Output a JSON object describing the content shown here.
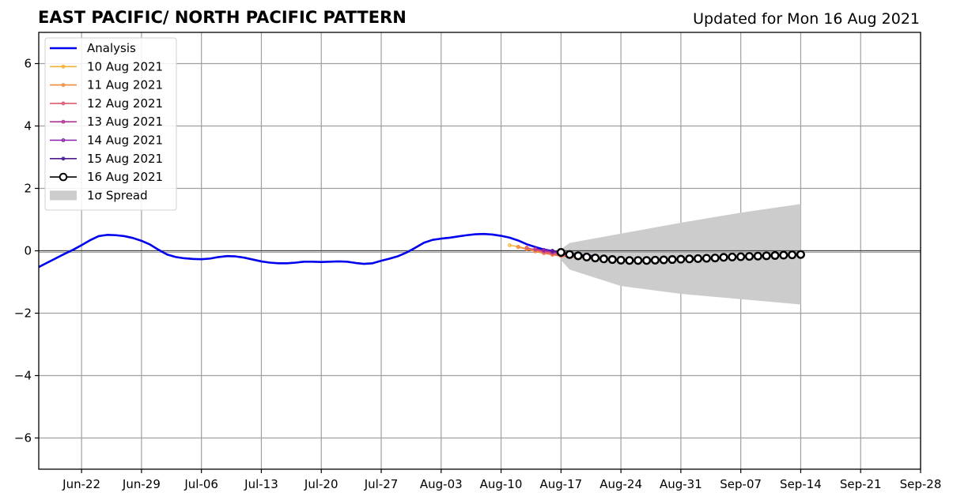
{
  "chart_data": {
    "type": "line",
    "title": "EAST PACIFIC/ NORTH PACIFIC PATTERN",
    "subtitle": "Updated for Mon 16 Aug 2021",
    "xlabel": "",
    "ylabel": "",
    "xlim": [
      "2021-06-17",
      "2021-09-28"
    ],
    "ylim": [
      -7,
      7
    ],
    "x_ticks": [
      "Jun-22",
      "Jun-29",
      "Jul-06",
      "Jul-13",
      "Jul-20",
      "Jul-27",
      "Aug-03",
      "Aug-10",
      "Aug-17",
      "Aug-24",
      "Aug-31",
      "Sep-07",
      "Sep-14",
      "Sep-21",
      "Sep-28"
    ],
    "y_ticks": [
      "6",
      "4",
      "2",
      "0",
      "−2",
      "−4",
      "−6"
    ],
    "y_tick_values": [
      6,
      4,
      2,
      0,
      -2,
      -4,
      -6
    ],
    "grid": true,
    "zero_line": true,
    "legend_position": "top-left",
    "analysis": {
      "name": "Analysis",
      "color": "#0000ee",
      "start_date": "2021-06-17",
      "values": [
        -0.52,
        -0.38,
        -0.24,
        -0.1,
        0.03,
        0.18,
        0.34,
        0.47,
        0.51,
        0.5,
        0.47,
        0.41,
        0.32,
        0.2,
        0.03,
        -0.12,
        -0.2,
        -0.24,
        -0.26,
        -0.27,
        -0.25,
        -0.2,
        -0.17,
        -0.18,
        -0.22,
        -0.28,
        -0.34,
        -0.38,
        -0.4,
        -0.4,
        -0.38,
        -0.35,
        -0.35,
        -0.36,
        -0.35,
        -0.34,
        -0.35,
        -0.39,
        -0.42,
        -0.4,
        -0.32,
        -0.25,
        -0.17,
        -0.05,
        0.1,
        0.26,
        0.35,
        0.39,
        0.42,
        0.46,
        0.5,
        0.53,
        0.54,
        0.52,
        0.48,
        0.42,
        0.33,
        0.21,
        0.12,
        0.04,
        -0.01
      ]
    },
    "forecasts": [
      {
        "name": "10 Aug 2021",
        "color": "#f5b133",
        "start_date": "2021-08-11",
        "values": [
          0.18,
          0.13,
          0.07,
          0.01,
          -0.04,
          -0.09,
          -0.13,
          -0.17,
          -0.19,
          -0.21,
          -0.22
        ]
      },
      {
        "name": "11 Aug 2021",
        "color": "#f08a3e",
        "start_date": "2021-08-12",
        "values": [
          0.12,
          0.05,
          -0.02,
          -0.08,
          -0.13,
          -0.17,
          -0.19,
          -0.21,
          -0.22,
          -0.22
        ]
      },
      {
        "name": "12 Aug 2021",
        "color": "#dd5a72",
        "start_date": "2021-08-13",
        "values": [
          0.1,
          0.03,
          -0.04,
          -0.1,
          -0.15,
          -0.19,
          -0.21,
          -0.22,
          -0.22
        ]
      },
      {
        "name": "13 Aug 2021",
        "color": "#b2358f",
        "start_date": "2021-08-14",
        "values": [
          0.06,
          0.0,
          -0.05,
          -0.1,
          -0.14,
          -0.17,
          -0.19,
          -0.2
        ]
      },
      {
        "name": "14 Aug 2021",
        "color": "#8a1fa8",
        "start_date": "2021-08-15",
        "values": [
          0.03,
          -0.02,
          -0.06,
          -0.1,
          -0.13,
          -0.15,
          -0.17
        ]
      },
      {
        "name": "15 Aug 2021",
        "color": "#4a1a8f",
        "start_date": "2021-08-16",
        "values": [
          0.0,
          -0.04,
          -0.08,
          -0.11,
          -0.14,
          -0.16
        ]
      }
    ],
    "latest_forecast": {
      "name": "16 Aug 2021",
      "color": "#000000",
      "start_date": "2021-08-17",
      "values": [
        -0.05,
        -0.12,
        -0.16,
        -0.2,
        -0.23,
        -0.26,
        -0.28,
        -0.3,
        -0.31,
        -0.31,
        -0.31,
        -0.3,
        -0.29,
        -0.28,
        -0.27,
        -0.26,
        -0.25,
        -0.24,
        -0.23,
        -0.21,
        -0.2,
        -0.19,
        -0.18,
        -0.17,
        -0.16,
        -0.15,
        -0.14,
        -0.13,
        -0.12
      ]
    },
    "spread": {
      "name": "1σ Spread",
      "color": "#cccccc",
      "x_dates": [
        "2021-08-17",
        "2021-08-18",
        "2021-08-24",
        "2021-08-31",
        "2021-09-07",
        "2021-09-14"
      ],
      "upper": [
        0.05,
        0.25,
        0.55,
        0.9,
        1.22,
        1.5
      ],
      "lower": [
        -0.3,
        -0.6,
        -1.13,
        -1.38,
        -1.55,
        -1.72
      ]
    },
    "legend": [
      {
        "label": "Analysis",
        "type": "line",
        "color": "#0000ee"
      },
      {
        "label": "10 Aug 2021",
        "type": "line-dot",
        "color": "#f5b133"
      },
      {
        "label": "11 Aug 2021",
        "type": "line-dot",
        "color": "#f08a3e"
      },
      {
        "label": "12 Aug 2021",
        "type": "line-dot",
        "color": "#dd5a72"
      },
      {
        "label": "13 Aug 2021",
        "type": "line-dot",
        "color": "#b2358f"
      },
      {
        "label": "14 Aug 2021",
        "type": "line-dot",
        "color": "#8a1fa8"
      },
      {
        "label": "15 Aug 2021",
        "type": "line-dot",
        "color": "#4a1a8f"
      },
      {
        "label": "16 Aug 2021",
        "type": "line-circle",
        "color": "#000000"
      },
      {
        "label": "1σ Spread",
        "type": "patch",
        "color": "#cccccc"
      }
    ]
  }
}
